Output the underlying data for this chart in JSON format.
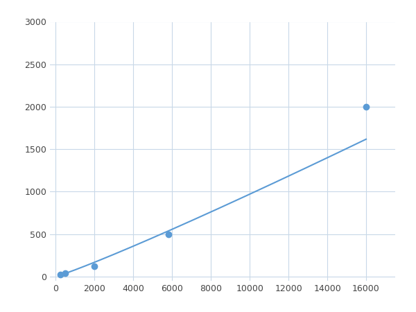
{
  "x_data": [
    250,
    500,
    2000,
    5800,
    16000
  ],
  "y_data": [
    20,
    40,
    120,
    500,
    2000
  ],
  "line_color": "#5b9bd5",
  "marker_color": "#5b9bd5",
  "marker_size": 6,
  "line_width": 1.5,
  "xlim": [
    -300,
    17500
  ],
  "ylim": [
    -50,
    3000
  ],
  "xticks": [
    0,
    2000,
    4000,
    6000,
    8000,
    10000,
    12000,
    14000,
    16000
  ],
  "yticks": [
    0,
    500,
    1000,
    1500,
    2000,
    2500,
    3000
  ],
  "grid_color": "#c8d8e8",
  "background_color": "#ffffff",
  "figsize": [
    6.0,
    4.5
  ],
  "dpi": 100
}
